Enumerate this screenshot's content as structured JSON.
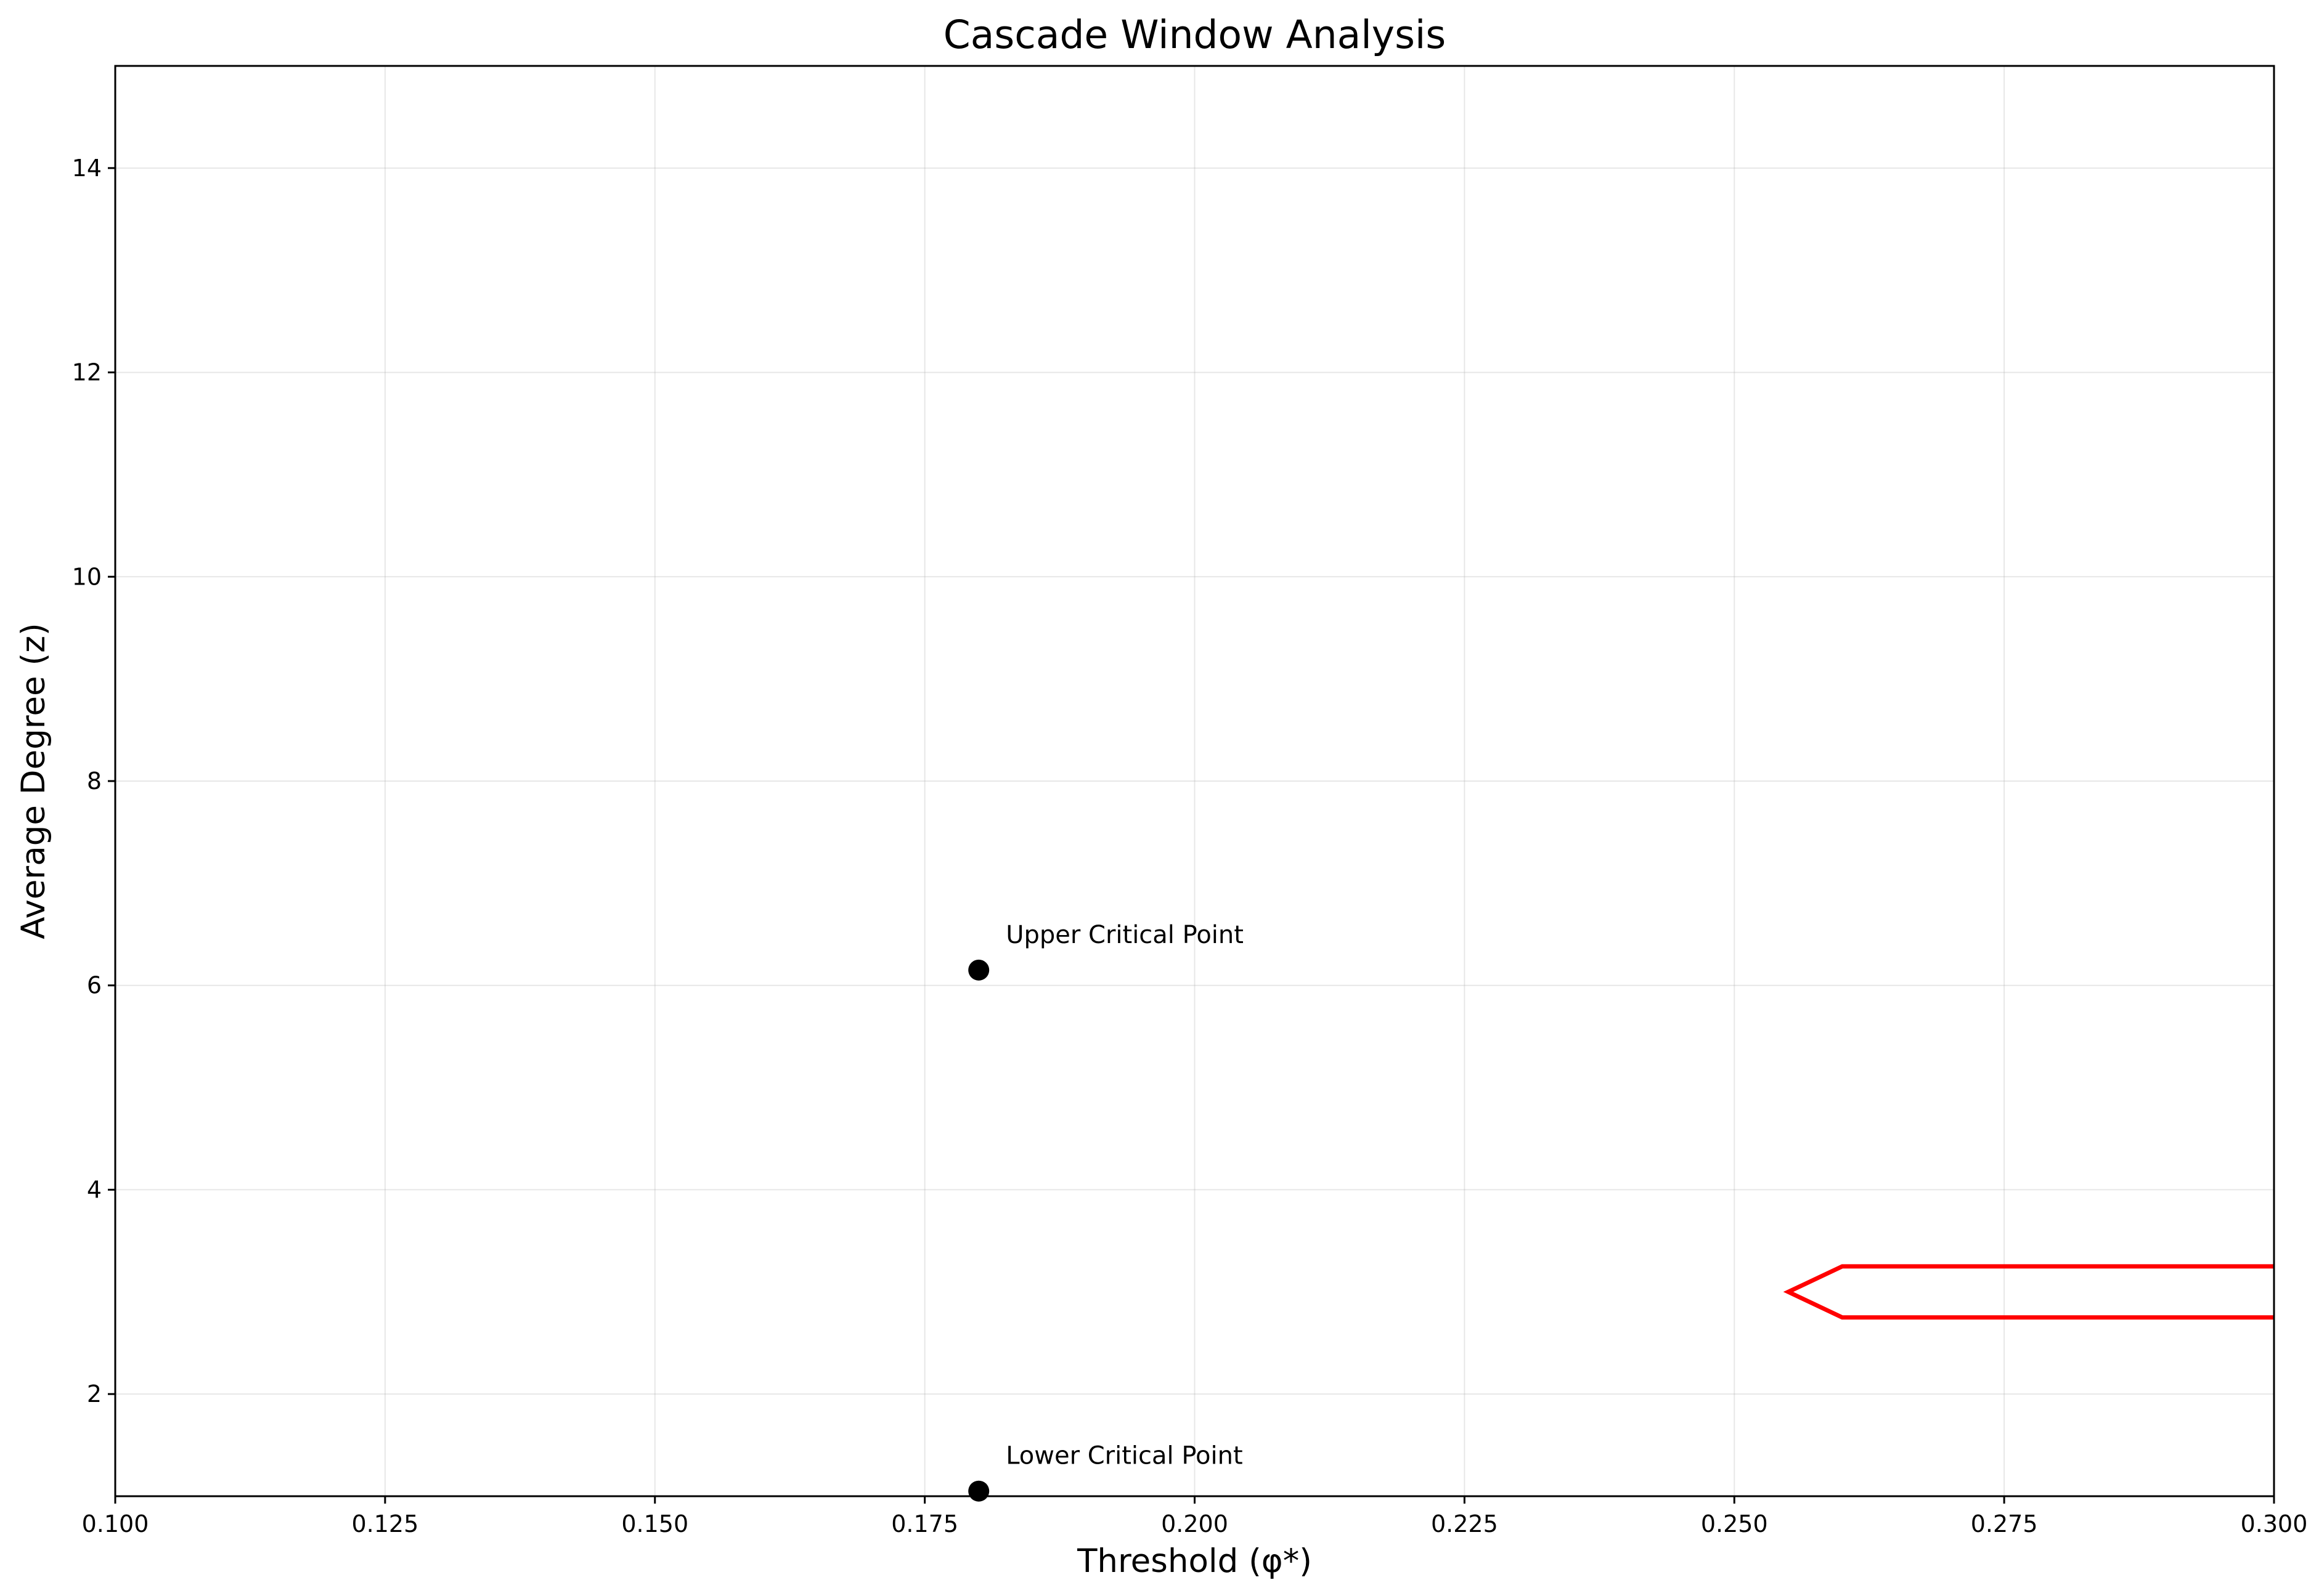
{
  "chart_data": {
    "type": "scatter",
    "title": "Cascade Window Analysis",
    "xlabel": "Threshold (φ*)",
    "ylabel": "Average Degree (z)",
    "xlim": [
      0.1,
      0.3
    ],
    "ylim": [
      1.0,
      15.0
    ],
    "xticks": [
      0.1,
      0.125,
      0.15,
      0.175,
      0.2,
      0.225,
      0.25,
      0.275,
      0.3
    ],
    "xtick_labels": [
      "0.100",
      "0.125",
      "0.150",
      "0.175",
      "0.200",
      "0.225",
      "0.250",
      "0.275",
      "0.300"
    ],
    "yticks": [
      2,
      4,
      6,
      8,
      10,
      12,
      14
    ],
    "ytick_labels": [
      "2",
      "4",
      "6",
      "8",
      "10",
      "12",
      "14"
    ],
    "grid": true,
    "points": [
      {
        "x": 0.18,
        "y": 6.15,
        "label": "Upper Critical Point",
        "color": "#000000"
      },
      {
        "x": 0.18,
        "y": 1.05,
        "label": "Lower Critical Point",
        "color": "#000000"
      }
    ],
    "arrow": {
      "color": "#ff0000",
      "tip": {
        "x": 0.255,
        "y": 3.0
      },
      "shoulder_x": 0.26,
      "tail_x": 0.3,
      "upper_y": 3.25,
      "lower_y": 2.75
    }
  }
}
